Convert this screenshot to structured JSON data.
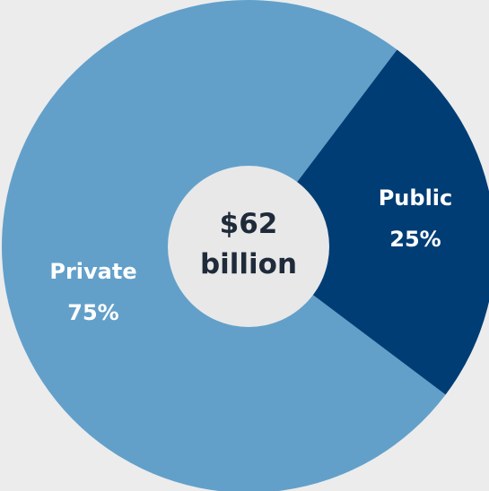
{
  "chart_data": {
    "type": "pie",
    "categories": [
      "Private",
      "Public"
    ],
    "values": [
      75,
      25
    ],
    "value_labels": [
      "75%",
      "25%"
    ],
    "colors": [
      "#62a0ca",
      "#003d75"
    ],
    "center_label": {
      "line1": "$62",
      "line2": "billion"
    },
    "background_color": "#ececec",
    "center_color": "#e8e8e8"
  }
}
